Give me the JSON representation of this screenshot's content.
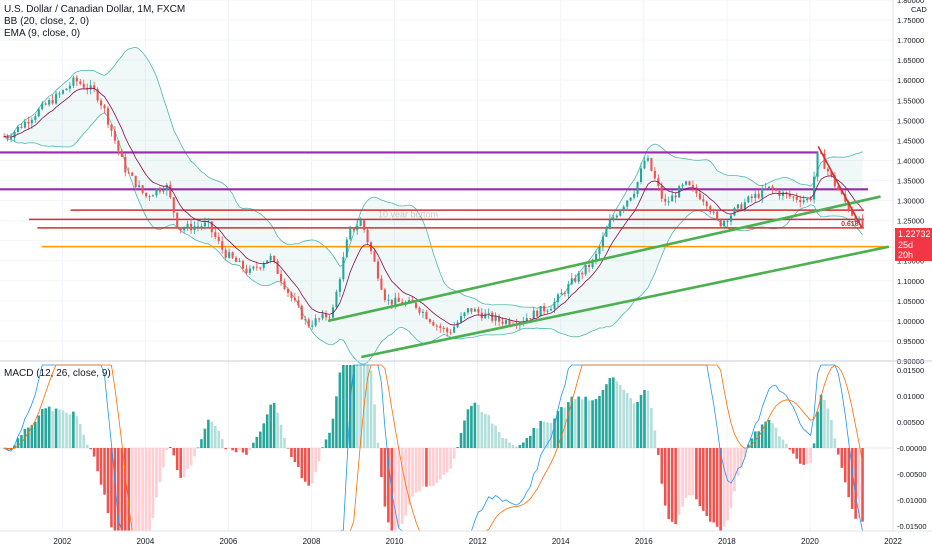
{
  "legend": {
    "symbol_line": "U.S. Dollar / Canadian Dollar, 1M, FXCM",
    "bb_line": "BB (20, close, 2, 0)",
    "ema_line": "EMA (9, close, 0)",
    "macd_line": "MACD (12, 26, close, 9)"
  },
  "price_axis": {
    "currency": "CAD",
    "ticks": [
      "1.80000",
      "1.75000",
      "1.70000",
      "1.65000",
      "1.60000",
      "1.55000",
      "1.50000",
      "1.45000",
      "1.40000",
      "1.35000",
      "1.30000",
      "1.25000",
      "1.20000",
      "1.15000",
      "1.10000",
      "1.05000",
      "1.00000",
      "0.95000",
      "0.90000"
    ],
    "current_price": "1.22732",
    "countdown": "25d 20h"
  },
  "macd_axis": {
    "ticks": [
      "0.01500",
      "0.01000",
      "0.00500",
      "-0.00000",
      "-0.00500",
      "-0.01000",
      "-0.01500"
    ]
  },
  "time_axis": {
    "ticks": [
      "2002",
      "2004",
      "2006",
      "2008",
      "2010",
      "2012",
      "2014",
      "2016",
      "2018",
      "2020",
      "2022"
    ]
  },
  "annotations": {
    "ten_year_bottom": "10 year bottom",
    "fib_label": "0.618"
  },
  "colors": {
    "up": "#26a69a",
    "down": "#ef5350",
    "magenta": "#9c27b0",
    "red_level": "#d32f2f",
    "orange": "#ff9800",
    "green_trend": "#4caf50",
    "bb_band": "#26a69a",
    "ema": "#880e4f",
    "macd_line": "#2196f3",
    "signal_line": "#ff6d00"
  },
  "chart_data": {
    "type": "candlestick",
    "symbol": "USDCAD",
    "timeframe": "1M",
    "x_range": [
      2000.5,
      2022
    ],
    "price_range": [
      0.9,
      1.8
    ],
    "macd_range": [
      -0.016,
      0.016
    ],
    "anchors": [
      [
        2000.7,
        1.46
      ],
      [
        2001.5,
        1.53
      ],
      [
        2002.0,
        1.57
      ],
      [
        2002.3,
        1.6
      ],
      [
        2002.8,
        1.57
      ],
      [
        2003.0,
        1.53
      ],
      [
        2003.5,
        1.38
      ],
      [
        2004.0,
        1.31
      ],
      [
        2004.5,
        1.34
      ],
      [
        2004.8,
        1.23
      ],
      [
        2005.5,
        1.24
      ],
      [
        2005.9,
        1.17
      ],
      [
        2006.5,
        1.12
      ],
      [
        2007.0,
        1.16
      ],
      [
        2007.5,
        1.06
      ],
      [
        2007.9,
        0.99
      ],
      [
        2008.5,
        1.02
      ],
      [
        2008.9,
        1.22
      ],
      [
        2009.2,
        1.25
      ],
      [
        2009.8,
        1.05
      ],
      [
        2010.5,
        1.04
      ],
      [
        2011.0,
        0.99
      ],
      [
        2011.3,
        0.97
      ],
      [
        2011.8,
        1.03
      ],
      [
        2012.5,
        1.0
      ],
      [
        2013.0,
        1.0
      ],
      [
        2013.8,
        1.04
      ],
      [
        2014.3,
        1.1
      ],
      [
        2014.8,
        1.15
      ],
      [
        2015.2,
        1.25
      ],
      [
        2015.8,
        1.33
      ],
      [
        2016.05,
        1.41
      ],
      [
        2016.5,
        1.29
      ],
      [
        2017.0,
        1.34
      ],
      [
        2017.5,
        1.3
      ],
      [
        2017.8,
        1.24
      ],
      [
        2018.5,
        1.3
      ],
      [
        2019.0,
        1.33
      ],
      [
        2019.5,
        1.31
      ],
      [
        2020.0,
        1.3
      ],
      [
        2020.2,
        1.42
      ],
      [
        2020.6,
        1.34
      ],
      [
        2021.0,
        1.27
      ],
      [
        2021.3,
        1.23
      ]
    ],
    "horizontal_levels": [
      {
        "price": 1.42,
        "color": "magenta",
        "x_start": 2000.5,
        "x_end": 2020.2
      },
      {
        "price": 1.328,
        "color": "magenta",
        "x_start": 2000.5,
        "x_end": 2021.4
      },
      {
        "price": 1.276,
        "color": "red_level",
        "x_start": 2002.2,
        "x_end": 2021.3
      },
      {
        "price": 1.253,
        "color": "red_level",
        "x_start": 2001.2,
        "x_end": 2021.3
      },
      {
        "price": 1.232,
        "color": "red_level",
        "x_start": 2001.4,
        "x_end": 2021.3
      },
      {
        "price": 1.185,
        "color": "orange",
        "x_start": 2001.5,
        "x_end": 2021.9
      }
    ],
    "trend_lines": [
      {
        "from": [
          2008.4,
          1.0
        ],
        "to": [
          2021.7,
          1.31
        ],
        "color": "green_trend"
      },
      {
        "from": [
          2009.2,
          0.91
        ],
        "to": [
          2021.9,
          1.185
        ],
        "color": "green_trend"
      },
      {
        "from": [
          2020.2,
          1.435
        ],
        "to": [
          2021.25,
          1.232
        ],
        "color": "red_level"
      }
    ]
  }
}
